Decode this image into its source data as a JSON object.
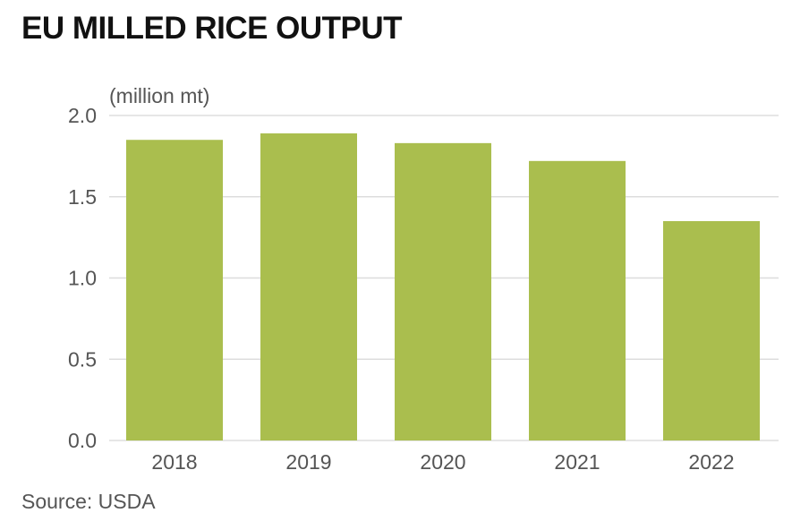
{
  "header": {
    "title": "EU MILLED RICE OUTPUT"
  },
  "footer": {
    "source": "Source: USDA"
  },
  "colors": {
    "bar": "#aabe4e",
    "grid": "#dddddd",
    "axis_text": "#555555",
    "title": "#111111"
  },
  "chart_data": {
    "type": "bar",
    "title": "EU MILLED RICE OUTPUT",
    "unit_label": "(million mt)",
    "xlabel": "",
    "ylabel": "(million mt)",
    "categories": [
      "2018",
      "2019",
      "2020",
      "2021",
      "2022"
    ],
    "values": [
      1.85,
      1.89,
      1.83,
      1.72,
      1.35
    ],
    "ylim": [
      0,
      2.0
    ],
    "yticks": [
      0.0,
      0.5,
      1.0,
      1.5,
      2.0
    ],
    "ytick_labels": [
      "0.0",
      "0.5",
      "1.0",
      "1.5",
      "2.0"
    ],
    "grid": true,
    "legend": "none"
  }
}
